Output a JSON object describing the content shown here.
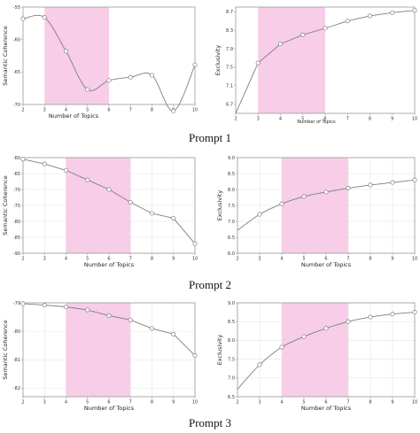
{
  "row_labels": [
    "Prompt 1",
    "Prompt 2",
    "Prompt 3"
  ],
  "colors": {
    "band": "#f7cde8",
    "line": "#7f7f7f",
    "marker_fill": "#ffffff",
    "grid": "#e4e4e4",
    "frame": "#9a9a9a"
  },
  "chart_data": [
    {
      "type": "line",
      "title": "",
      "xlabel": "Number of Topics",
      "ylabel": "Semantic Coherence",
      "x": [
        2,
        3,
        4,
        5,
        6,
        7,
        8,
        9,
        10
      ],
      "y": [
        -56.8,
        -56.6,
        -61.8,
        -67.7,
        -66.3,
        -65.8,
        -65.5,
        -71.0,
        -63.9
      ],
      "xlim": [
        2,
        10
      ],
      "ylim": [
        -70,
        -55
      ],
      "xticks": [
        2,
        3,
        4,
        5,
        6,
        7,
        8,
        9,
        10
      ],
      "yticks": [
        -55,
        -60,
        -65,
        -70
      ],
      "ytick_labels": [
        "-55",
        "-60",
        "-65",
        "-70"
      ],
      "highlight": [
        3,
        6
      ],
      "grid": false,
      "smooth": true
    },
    {
      "type": "line",
      "title": "",
      "xlabel": "Number of Topics",
      "ylabel": "Exclusivity",
      "x": [
        2,
        3,
        4,
        5,
        6,
        7,
        8,
        9,
        10
      ],
      "y": [
        6.5,
        7.59,
        8.0,
        8.2,
        8.34,
        8.5,
        8.61,
        8.68,
        8.73
      ],
      "xlim": [
        2,
        10
      ],
      "ylim": [
        6.5,
        8.8
      ],
      "xticks": [
        2,
        3,
        4,
        5,
        6,
        7,
        8,
        9,
        10
      ],
      "yticks": [
        6.7,
        7.1,
        7.5,
        7.9,
        8.3,
        8.7
      ],
      "ytick_labels": [
        "6.7",
        "7.1",
        "7.5",
        "7.9",
        "8.3",
        "8.7"
      ],
      "highlight": [
        3,
        6
      ],
      "grid": false,
      "smooth": false
    },
    {
      "type": "line",
      "title": "",
      "xlabel": "Number of Topics",
      "ylabel": "Semantic Coherence",
      "x": [
        2,
        3,
        4,
        5,
        6,
        7,
        8,
        9,
        10
      ],
      "y": [
        -60.5,
        -62.0,
        -64.0,
        -67.0,
        -70.0,
        -74.0,
        -77.5,
        -79.0,
        -87.0
      ],
      "xlim": [
        2,
        10
      ],
      "ylim": [
        -90,
        -60
      ],
      "xticks": [
        2,
        3,
        4,
        5,
        6,
        7,
        8,
        9,
        10
      ],
      "yticks": [
        -60,
        -65,
        -70,
        -75,
        -80,
        -85,
        -90
      ],
      "ytick_labels": [
        "-60",
        "-65",
        "-70",
        "-75",
        "-80",
        "-85",
        "-90"
      ],
      "highlight": [
        4,
        7
      ],
      "grid": true,
      "smooth": false
    },
    {
      "type": "line",
      "title": "",
      "xlabel": "Number of Topics",
      "ylabel": "Exclusivity",
      "x": [
        2,
        3,
        4,
        5,
        6,
        7,
        8,
        9,
        10
      ],
      "y": [
        6.72,
        7.22,
        7.55,
        7.78,
        7.92,
        8.04,
        8.14,
        8.22,
        8.3
      ],
      "xlim": [
        2,
        10
      ],
      "ylim": [
        6.0,
        9.0
      ],
      "xticks": [
        2,
        3,
        4,
        5,
        6,
        7,
        8,
        9,
        10
      ],
      "yticks": [
        6.0,
        6.5,
        7.0,
        7.5,
        8.0,
        8.5,
        9.0
      ],
      "ytick_labels": [
        "6.0",
        "6.5",
        "7.0",
        "7.5",
        "8.0",
        "8.5",
        "9.0"
      ],
      "highlight": [
        4,
        7
      ],
      "grid": true,
      "smooth": true
    },
    {
      "type": "line",
      "title": "",
      "xlabel": "Number of Topics",
      "ylabel": "Semantic Coherence",
      "x": [
        2,
        3,
        4,
        5,
        6,
        7,
        8,
        9,
        10
      ],
      "y": [
        -79.03,
        -79.08,
        -79.14,
        -79.25,
        -79.45,
        -79.6,
        -79.9,
        -80.1,
        -80.85
      ],
      "xlim": [
        2,
        10
      ],
      "ylim": [
        -82.3,
        -79.0
      ],
      "xticks": [
        2,
        3,
        4,
        5,
        6,
        7,
        8,
        9,
        10
      ],
      "yticks": [
        -79,
        -80,
        -81,
        -82
      ],
      "ytick_labels": [
        "-79",
        "-80",
        "-81",
        "-82"
      ],
      "highlight": [
        4,
        7
      ],
      "grid": true,
      "smooth": false
    },
    {
      "type": "line",
      "title": "",
      "xlabel": "Number of Topics",
      "ylabel": "Exclusivity",
      "x": [
        2,
        3,
        4,
        5,
        6,
        7,
        8,
        9,
        10
      ],
      "y": [
        6.7,
        7.35,
        7.82,
        8.1,
        8.32,
        8.5,
        8.62,
        8.7,
        8.75
      ],
      "xlim": [
        2,
        10
      ],
      "ylim": [
        6.5,
        9.0
      ],
      "xticks": [
        2,
        3,
        4,
        5,
        6,
        7,
        8,
        9,
        10
      ],
      "yticks": [
        6.5,
        7.0,
        7.5,
        8.0,
        8.5,
        9.0
      ],
      "ytick_labels": [
        "6.5",
        "7.0",
        "7.5",
        "8.0",
        "8.5",
        "9.0"
      ],
      "highlight": [
        4,
        7
      ],
      "grid": true,
      "smooth": true
    }
  ]
}
